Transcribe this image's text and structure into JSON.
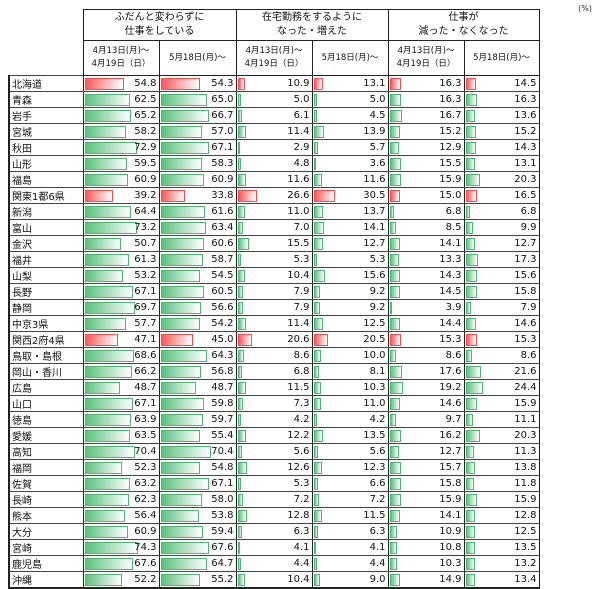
{
  "unit": "(%)",
  "chart_data": {
    "type": "table",
    "groups": [
      "ふだんと変わらずに\n仕事をしている",
      "在宅勤務をするように\nなった・増えた",
      "仕事が\n減った・なくなった"
    ],
    "periods": [
      "4月13日(月)～\n4月19日（日）",
      "5月18日(月)～"
    ],
    "highlight_color": "#ff5a5a",
    "normal_color": "#5cc27e",
    "rows": [
      {
        "region": "北海道",
        "highlight": true,
        "values": [
          54.8,
          54.3,
          10.9,
          13.1,
          16.3,
          14.5
        ]
      },
      {
        "region": "青森",
        "highlight": false,
        "values": [
          62.5,
          65.0,
          5.0,
          5.0,
          16.3,
          16.3
        ]
      },
      {
        "region": "岩手",
        "highlight": false,
        "values": [
          65.2,
          66.7,
          6.1,
          4.5,
          16.7,
          13.6
        ]
      },
      {
        "region": "宮城",
        "highlight": false,
        "values": [
          58.2,
          57.0,
          11.4,
          13.9,
          15.2,
          15.2
        ]
      },
      {
        "region": "秋田",
        "highlight": false,
        "values": [
          72.9,
          67.1,
          2.9,
          5.7,
          12.9,
          14.3
        ]
      },
      {
        "region": "山形",
        "highlight": false,
        "values": [
          59.5,
          58.3,
          4.8,
          3.6,
          15.5,
          13.1
        ]
      },
      {
        "region": "福島",
        "highlight": false,
        "values": [
          60.9,
          60.9,
          11.6,
          11.6,
          15.9,
          20.3
        ]
      },
      {
        "region": "関東1都6県",
        "highlight": true,
        "values": [
          39.2,
          33.8,
          26.6,
          30.5,
          15.0,
          16.5
        ]
      },
      {
        "region": "新潟",
        "highlight": false,
        "values": [
          64.4,
          61.6,
          11.0,
          13.7,
          6.8,
          6.8
        ]
      },
      {
        "region": "富山",
        "highlight": false,
        "values": [
          73.2,
          63.4,
          7.0,
          14.1,
          8.5,
          9.9
        ]
      },
      {
        "region": "金沢",
        "highlight": false,
        "values": [
          50.7,
          60.6,
          15.5,
          12.7,
          14.1,
          12.7
        ]
      },
      {
        "region": "福井",
        "highlight": false,
        "values": [
          61.3,
          58.7,
          5.3,
          5.3,
          13.3,
          17.3
        ]
      },
      {
        "region": "山梨",
        "highlight": false,
        "values": [
          53.2,
          54.5,
          10.4,
          15.6,
          14.3,
          15.6
        ]
      },
      {
        "region": "長野",
        "highlight": false,
        "values": [
          67.1,
          60.5,
          7.9,
          9.2,
          14.5,
          15.8
        ]
      },
      {
        "region": "静岡",
        "highlight": false,
        "values": [
          69.7,
          56.6,
          7.9,
          9.2,
          3.9,
          7.9
        ]
      },
      {
        "region": "中京3県",
        "highlight": false,
        "values": [
          57.7,
          54.2,
          11.4,
          12.5,
          14.4,
          14.6
        ]
      },
      {
        "region": "関西2府4県",
        "highlight": true,
        "values": [
          47.1,
          45.0,
          20.6,
          20.5,
          15.3,
          15.3
        ]
      },
      {
        "region": "鳥取・島根",
        "highlight": false,
        "values": [
          68.6,
          64.3,
          8.6,
          10.0,
          8.6,
          8.6
        ]
      },
      {
        "region": "岡山・香川",
        "highlight": false,
        "values": [
          66.2,
          56.8,
          6.8,
          8.1,
          17.6,
          21.6
        ]
      },
      {
        "region": "広島",
        "highlight": false,
        "values": [
          48.7,
          48.7,
          11.5,
          10.3,
          19.2,
          24.4
        ]
      },
      {
        "region": "山口",
        "highlight": false,
        "values": [
          67.1,
          59.8,
          7.3,
          11.0,
          14.6,
          15.9
        ]
      },
      {
        "region": "徳島",
        "highlight": false,
        "values": [
          63.9,
          59.7,
          4.2,
          4.2,
          9.7,
          11.1
        ]
      },
      {
        "region": "愛媛",
        "highlight": false,
        "values": [
          63.5,
          55.4,
          12.2,
          13.5,
          16.2,
          20.3
        ]
      },
      {
        "region": "高知",
        "highlight": false,
        "values": [
          70.4,
          70.4,
          5.6,
          5.6,
          12.7,
          11.3
        ]
      },
      {
        "region": "福岡",
        "highlight": false,
        "values": [
          52.3,
          54.8,
          12.6,
          12.3,
          15.7,
          13.8
        ]
      },
      {
        "region": "佐賀",
        "highlight": false,
        "values": [
          63.2,
          67.1,
          5.3,
          6.6,
          15.8,
          11.8
        ]
      },
      {
        "region": "長崎",
        "highlight": false,
        "values": [
          62.3,
          58.0,
          7.2,
          7.2,
          15.9,
          15.9
        ]
      },
      {
        "region": "熊本",
        "highlight": false,
        "values": [
          56.4,
          53.8,
          12.8,
          11.5,
          14.1,
          12.8
        ]
      },
      {
        "region": "大分",
        "highlight": false,
        "values": [
          60.9,
          59.4,
          6.3,
          6.3,
          10.9,
          12.5
        ]
      },
      {
        "region": "宮崎",
        "highlight": false,
        "values": [
          74.3,
          67.6,
          4.1,
          4.1,
          10.8,
          13.5
        ]
      },
      {
        "region": "鹿児島",
        "highlight": false,
        "values": [
          67.6,
          64.7,
          4.4,
          4.4,
          10.3,
          13.2
        ]
      },
      {
        "region": "沖縄",
        "highlight": false,
        "values": [
          52.2,
          55.2,
          10.4,
          9.0,
          14.9,
          13.4
        ]
      }
    ]
  }
}
